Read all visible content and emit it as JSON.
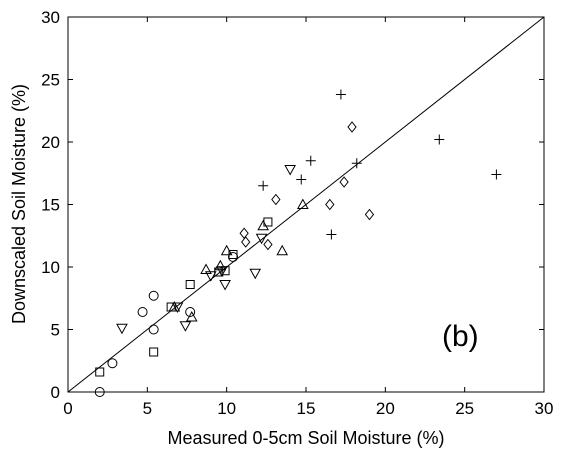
{
  "chart_data": {
    "type": "scatter",
    "xlabel": "Measured 0-5cm Soil Moisture (%)",
    "ylabel": "Downscaled Soil Moisture (%)",
    "xlim": [
      0,
      30
    ],
    "ylim": [
      0,
      30
    ],
    "xticks": [
      "0",
      "5",
      "10",
      "15",
      "20",
      "25",
      "30"
    ],
    "yticks": [
      "0",
      "5",
      "10",
      "15",
      "20",
      "25",
      "30"
    ],
    "grid": false,
    "annotation": "(b)",
    "reference_line": {
      "x": [
        0,
        30
      ],
      "y": [
        0,
        30
      ]
    },
    "series": [
      {
        "marker": "circle",
        "x": [
          2.0,
          2.8,
          4.7,
          5.4,
          5.4,
          7.7,
          10.4
        ],
        "y": [
          0.0,
          2.3,
          6.4,
          7.7,
          5.0,
          6.4,
          10.8
        ]
      },
      {
        "marker": "square",
        "x": [
          2.0,
          5.4,
          6.5,
          7.7,
          9.5,
          9.9,
          10.4,
          12.6
        ],
        "y": [
          1.6,
          3.2,
          6.8,
          8.6,
          9.6,
          9.7,
          11.0,
          13.6
        ]
      },
      {
        "marker": "triangle-down",
        "x": [
          3.4,
          6.9,
          7.4,
          9.0,
          9.7,
          9.9,
          11.8,
          12.2,
          14.0
        ],
        "y": [
          5.1,
          6.8,
          5.3,
          9.3,
          9.7,
          8.6,
          9.5,
          12.3,
          17.8
        ]
      },
      {
        "marker": "triangle-up",
        "x": [
          6.7,
          7.8,
          8.7,
          9.6,
          10.0,
          12.3,
          13.5,
          14.8
        ],
        "y": [
          6.8,
          6.0,
          9.8,
          10.1,
          11.3,
          13.3,
          11.3,
          15.0
        ]
      },
      {
        "marker": "diamond",
        "x": [
          11.1,
          11.2,
          12.6,
          13.1,
          16.5,
          17.4,
          17.9,
          19.0
        ],
        "y": [
          12.7,
          12.0,
          11.8,
          15.4,
          15.0,
          16.8,
          21.2,
          14.2
        ]
      },
      {
        "marker": "plus",
        "x": [
          12.3,
          14.7,
          15.3,
          16.6,
          17.2,
          18.2,
          23.4,
          27.0
        ],
        "y": [
          16.5,
          17.0,
          18.5,
          12.6,
          23.8,
          18.3,
          20.2,
          17.4
        ]
      }
    ]
  }
}
